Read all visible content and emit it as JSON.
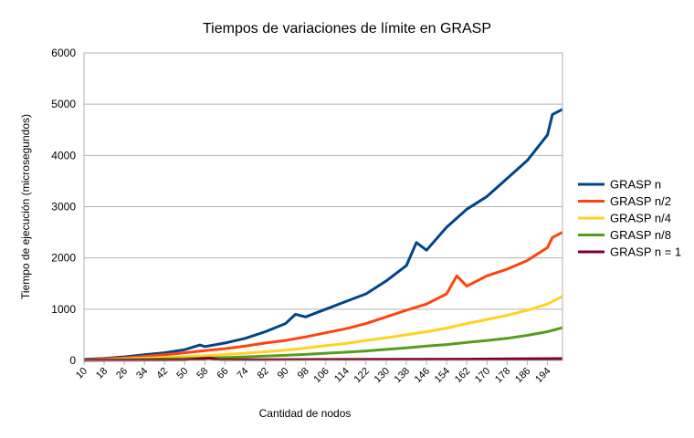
{
  "chart_data": {
    "type": "line",
    "title": "Tiempos de variaciones de límite en GRASP",
    "xlabel": "Cantidad de nodos",
    "ylabel": "Tiempo de ejecución (microsegundos)",
    "ylim": [
      0,
      6000
    ],
    "yticks": [
      0,
      1000,
      2000,
      3000,
      4000,
      5000,
      6000
    ],
    "x_range": [
      10,
      200
    ],
    "x_tick_labels": [
      "10",
      "18",
      "26",
      "34",
      "42",
      "50",
      "58",
      "66",
      "74",
      "82",
      "90",
      "98",
      "106",
      "114",
      "122",
      "130",
      "138",
      "146",
      "154",
      "162",
      "170",
      "178",
      "186",
      "194"
    ],
    "grid": "horizontal",
    "legend_position": "right",
    "series": [
      {
        "name": "GRASP n",
        "color": "#004586",
        "points": [
          [
            10,
            20
          ],
          [
            18,
            40
          ],
          [
            26,
            70
          ],
          [
            34,
            110
          ],
          [
            42,
            150
          ],
          [
            50,
            210
          ],
          [
            56,
            300
          ],
          [
            58,
            270
          ],
          [
            66,
            340
          ],
          [
            74,
            430
          ],
          [
            82,
            560
          ],
          [
            90,
            720
          ],
          [
            94,
            900
          ],
          [
            98,
            850
          ],
          [
            106,
            1000
          ],
          [
            114,
            1150
          ],
          [
            122,
            1300
          ],
          [
            130,
            1550
          ],
          [
            138,
            1850
          ],
          [
            142,
            2300
          ],
          [
            146,
            2150
          ],
          [
            154,
            2600
          ],
          [
            162,
            2950
          ],
          [
            170,
            3200
          ],
          [
            178,
            3550
          ],
          [
            186,
            3900
          ],
          [
            194,
            4400
          ],
          [
            196,
            4800
          ],
          [
            200,
            4900
          ]
        ]
      },
      {
        "name": "GRASP n/2",
        "color": "#ff420e",
        "points": [
          [
            10,
            10
          ],
          [
            18,
            30
          ],
          [
            26,
            50
          ],
          [
            34,
            80
          ],
          [
            42,
            110
          ],
          [
            50,
            150
          ],
          [
            58,
            190
          ],
          [
            66,
            230
          ],
          [
            74,
            280
          ],
          [
            82,
            340
          ],
          [
            90,
            390
          ],
          [
            98,
            460
          ],
          [
            106,
            540
          ],
          [
            114,
            620
          ],
          [
            122,
            720
          ],
          [
            130,
            850
          ],
          [
            138,
            980
          ],
          [
            146,
            1100
          ],
          [
            154,
            1300
          ],
          [
            158,
            1650
          ],
          [
            162,
            1450
          ],
          [
            170,
            1650
          ],
          [
            178,
            1780
          ],
          [
            186,
            1950
          ],
          [
            194,
            2200
          ],
          [
            196,
            2400
          ],
          [
            200,
            2500
          ]
        ]
      },
      {
        "name": "GRASP n/4",
        "color": "#ffd320",
        "points": [
          [
            10,
            5
          ],
          [
            18,
            15
          ],
          [
            26,
            30
          ],
          [
            34,
            45
          ],
          [
            42,
            60
          ],
          [
            50,
            75
          ],
          [
            58,
            95
          ],
          [
            66,
            115
          ],
          [
            74,
            140
          ],
          [
            82,
            170
          ],
          [
            90,
            200
          ],
          [
            98,
            240
          ],
          [
            106,
            290
          ],
          [
            114,
            330
          ],
          [
            122,
            390
          ],
          [
            130,
            440
          ],
          [
            138,
            500
          ],
          [
            146,
            560
          ],
          [
            154,
            630
          ],
          [
            162,
            720
          ],
          [
            170,
            800
          ],
          [
            178,
            880
          ],
          [
            186,
            980
          ],
          [
            194,
            1100
          ],
          [
            200,
            1250
          ]
        ]
      },
      {
        "name": "GRASP n/8",
        "color": "#579d1c",
        "points": [
          [
            10,
            3
          ],
          [
            18,
            8
          ],
          [
            26,
            14
          ],
          [
            34,
            20
          ],
          [
            42,
            28
          ],
          [
            50,
            36
          ],
          [
            58,
            46
          ],
          [
            66,
            56
          ],
          [
            74,
            70
          ],
          [
            82,
            85
          ],
          [
            90,
            100
          ],
          [
            98,
            118
          ],
          [
            106,
            140
          ],
          [
            114,
            160
          ],
          [
            122,
            185
          ],
          [
            130,
            215
          ],
          [
            138,
            245
          ],
          [
            146,
            280
          ],
          [
            154,
            310
          ],
          [
            162,
            350
          ],
          [
            170,
            390
          ],
          [
            178,
            430
          ],
          [
            186,
            490
          ],
          [
            194,
            560
          ],
          [
            200,
            640
          ]
        ]
      },
      {
        "name": "GRASP n = 1",
        "color": "#7e0021",
        "points": [
          [
            10,
            5
          ],
          [
            30,
            8
          ],
          [
            50,
            10
          ],
          [
            60,
            45
          ],
          [
            64,
            12
          ],
          [
            80,
            15
          ],
          [
            100,
            18
          ],
          [
            120,
            20
          ],
          [
            140,
            22
          ],
          [
            160,
            25
          ],
          [
            180,
            30
          ],
          [
            200,
            35
          ]
        ]
      }
    ]
  }
}
